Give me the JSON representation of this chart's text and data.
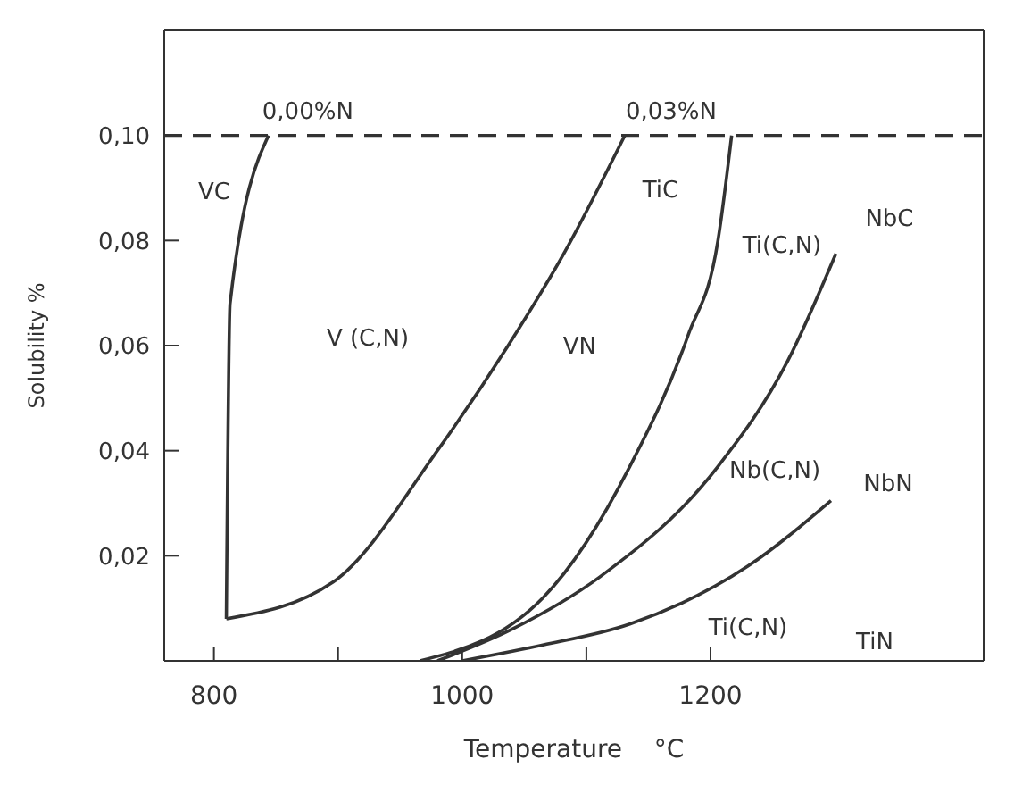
{
  "chart_data": {
    "type": "line",
    "xlabel": "Temperature    °C",
    "ylabel": "Solubility %",
    "xlim": [
      760,
      1420
    ],
    "ylim": [
      0,
      0.12
    ],
    "xticks": [
      800,
      {
        "value": 900,
        "label": null
      },
      1000,
      {
        "value": 1100,
        "label": null
      },
      1200
    ],
    "yticks": [
      {
        "value": 0.02,
        "label": "0,02"
      },
      {
        "value": 0.04,
        "label": "0,04"
      },
      {
        "value": 0.06,
        "label": "0,06"
      },
      {
        "value": 0.08,
        "label": "0,08"
      },
      {
        "value": 0.1,
        "label": "0,10"
      }
    ],
    "grid": false,
    "legend": false,
    "marker": "none",
    "line_style": "solid",
    "series": [
      {
        "color": "#333333",
        "x": [
          810,
          813,
          844
        ],
        "values": [
          0.008,
          0.068,
          0.1
        ]
      },
      {
        "color": "#333333",
        "x": [
          810,
          896,
          980,
          1037,
          1083,
          1131
        ],
        "values": [
          0.008,
          0.015,
          0.04,
          0.06,
          0.078,
          0.1
        ]
      },
      {
        "color": "#333333",
        "x": [
          966,
          1065,
          1135,
          1182,
          1206,
          1217
        ],
        "values": [
          0,
          0.012,
          0.037,
          0.062,
          0.08,
          0.1
        ]
      },
      {
        "color": "#333333",
        "x": [
          980,
          1040,
          1111,
          1206,
          1262,
          1301
        ],
        "values": [
          0,
          0.006,
          0.016,
          0.037,
          0.057,
          0.0775
        ]
      },
      {
        "color": "#333333",
        "x": [
          1000,
          1065,
          1135,
          1230,
          1297
        ],
        "values": [
          0,
          0.003,
          0.007,
          0.018,
          0.0305
        ]
      }
    ],
    "ref_lines": [
      {
        "axis": "y",
        "value": 0.1,
        "color": "#333333",
        "line_style": "dashed"
      }
    ],
    "annotations": [
      {
        "text": "0,00%N",
        "x": 844,
        "y": 0.1
      },
      {
        "text": "0,03%N",
        "x": 1131,
        "y": 0.1
      },
      "VC",
      {
        "text": "VN",
        "x": 1037,
        "y": 0.06
      },
      "TiC",
      {
        "text": "NbC",
        "x": 1301,
        "y": 0.0775
      },
      {
        "text": "NbN",
        "x": 1297,
        "y": 0.0305
      },
      "TiN",
      "V (C,N)",
      "Ti(C,N)",
      "Nb(C,N)",
      "Ti(C,N)"
    ]
  }
}
